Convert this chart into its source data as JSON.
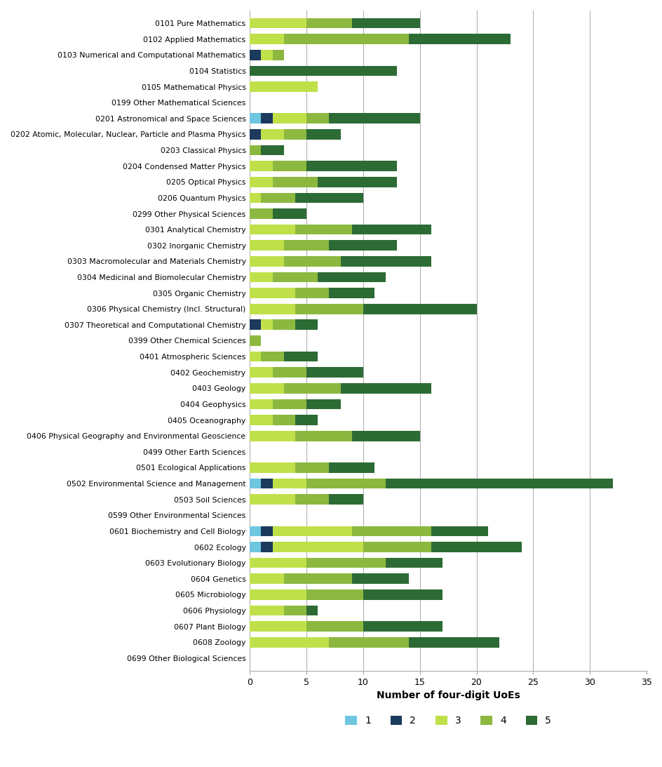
{
  "categories": [
    "0101 Pure Mathematics",
    "0102 Applied Mathematics",
    "0103 Numerical and Computational Mathematics",
    "0104 Statistics",
    "0105 Mathematical Physics",
    "0199 Other Mathematical Sciences",
    "0201 Astronomical and Space Sciences",
    "0202 Atomic, Molecular, Nuclear, Particle and Plasma Physics",
    "0203 Classical Physics",
    "0204 Condensed Matter Physics",
    "0205 Optical Physics",
    "0206 Quantum Physics",
    "0299 Other Physical Sciences",
    "0301 Analytical Chemistry",
    "0302 Inorganic Chemistry",
    "0303 Macromolecular and Materials Chemistry",
    "0304 Medicinal and Biomolecular Chemistry",
    "0305 Organic Chemistry",
    "0306 Physical Chemistry (Incl. Structural)",
    "0307 Theoretical and Computational Chemistry",
    "0399 Other Chemical Sciences",
    "0401 Atmospheric Sciences",
    "0402 Geochemistry",
    "0403 Geology",
    "0404 Geophysics",
    "0405 Oceanography",
    "0406 Physical Geography and Environmental Geoscience",
    "0499 Other Earth Sciences",
    "0501 Ecological Applications",
    "0502 Environmental Science and Management",
    "0503 Soil Sciences",
    "0599 Other Environmental Sciences",
    "0601 Biochemistry and Cell Biology",
    "0602 Ecology",
    "0603 Evolutionary Biology",
    "0604 Genetics",
    "0605 Microbiology",
    "0606 Physiology",
    "0607 Plant Biology",
    "0608 Zoology",
    "0699 Other Biological Sciences"
  ],
  "data": {
    "1": [
      0,
      0,
      0,
      0,
      0,
      0,
      1,
      0,
      0,
      0,
      0,
      0,
      0,
      0,
      0,
      0,
      0,
      0,
      0,
      0,
      0,
      0,
      0,
      0,
      0,
      0,
      0,
      0,
      0,
      1,
      0,
      0,
      1,
      1,
      0,
      0,
      0,
      0,
      0,
      0,
      0
    ],
    "2": [
      0,
      0,
      1,
      0,
      0,
      0,
      1,
      1,
      0,
      0,
      0,
      0,
      0,
      0,
      0,
      0,
      0,
      0,
      0,
      1,
      0,
      0,
      0,
      0,
      0,
      0,
      0,
      0,
      0,
      1,
      0,
      0,
      1,
      1,
      0,
      0,
      0,
      0,
      0,
      0,
      0
    ],
    "3": [
      5,
      3,
      1,
      0,
      6,
      0,
      3,
      2,
      0,
      2,
      2,
      1,
      0,
      4,
      3,
      3,
      2,
      4,
      4,
      1,
      0,
      1,
      2,
      3,
      2,
      2,
      4,
      0,
      4,
      3,
      4,
      0,
      7,
      8,
      5,
      3,
      5,
      3,
      5,
      7,
      0
    ],
    "4": [
      4,
      11,
      1,
      0,
      0,
      0,
      2,
      2,
      1,
      3,
      4,
      3,
      2,
      5,
      4,
      5,
      4,
      3,
      6,
      2,
      1,
      2,
      3,
      5,
      3,
      2,
      5,
      0,
      3,
      7,
      3,
      0,
      7,
      6,
      7,
      6,
      5,
      2,
      5,
      7,
      0
    ],
    "5": [
      6,
      9,
      0,
      13,
      0,
      0,
      8,
      3,
      2,
      8,
      7,
      6,
      3,
      7,
      6,
      8,
      6,
      4,
      10,
      2,
      0,
      3,
      5,
      8,
      3,
      2,
      6,
      0,
      4,
      20,
      3,
      0,
      5,
      8,
      5,
      5,
      7,
      1,
      7,
      8,
      0
    ]
  },
  "colors": {
    "1": "#6ec6e0",
    "2": "#1b3a5c",
    "3": "#c0e04a",
    "4": "#8cb840",
    "5": "#2d6b35"
  },
  "xlabel": "Number of four-digit UoEs",
  "xlim": [
    0,
    35
  ],
  "xticks": [
    0,
    5,
    10,
    15,
    20,
    25,
    30,
    35
  ],
  "legend_labels": [
    "1",
    "2",
    "3",
    "4",
    "5"
  ],
  "background_color": "#ffffff",
  "bar_height": 0.65,
  "figwidth": 9.45,
  "figheight": 10.93
}
